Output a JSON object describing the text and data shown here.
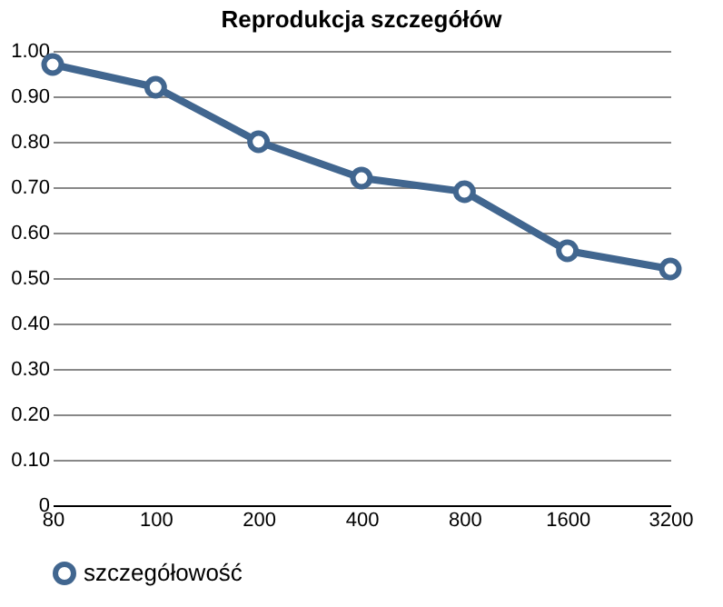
{
  "chart_data": {
    "type": "line",
    "title": "Reprodukcja szczegółów",
    "categories": [
      "80",
      "100",
      "200",
      "400",
      "800",
      "1600",
      "3200"
    ],
    "series": [
      {
        "name": "szczegółowość",
        "color": "#41668f",
        "values": [
          0.97,
          0.92,
          0.8,
          0.72,
          0.69,
          0.56,
          0.52
        ]
      }
    ],
    "ylim": [
      0,
      1
    ],
    "yticks": [
      0,
      {
        "value": 0.1,
        "label": "0.10"
      },
      {
        "value": 0.2,
        "label": "0.20"
      },
      {
        "value": 0.3,
        "label": "0.30"
      },
      {
        "value": 0.4,
        "label": "0.40"
      },
      {
        "value": 0.5,
        "label": "0.50"
      },
      {
        "value": 0.6,
        "label": "0.60"
      },
      {
        "value": 0.7,
        "label": "0.70"
      },
      {
        "value": 0.8,
        "label": "0.80"
      },
      {
        "value": 0.9,
        "label": "0.90"
      },
      {
        "value": 1,
        "label": "1.00"
      }
    ],
    "grid": "y",
    "legend": "bottom",
    "marker": "circle",
    "line_style": "solid"
  }
}
